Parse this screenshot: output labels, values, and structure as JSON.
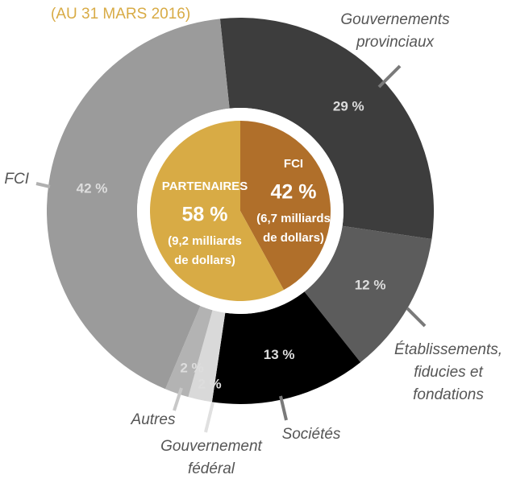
{
  "chart_data": {
    "type": "donut",
    "subtitle": "(AU 31 MARS 2016)",
    "categories": [
      "Gouvernements provinciaux",
      "Établissements, fiducies et fondations",
      "Sociétés",
      "Gouvernement fédéral",
      "Autres",
      "FCI"
    ],
    "values": [
      29,
      12,
      13,
      2,
      2,
      42
    ],
    "value_labels": [
      "29 %",
      "12 %",
      "13 %",
      "2 %",
      "2 %",
      "42 %"
    ],
    "colors": [
      "#3d3d3d",
      "#5c5c5c",
      "#000000",
      "#d9d9d9",
      "#b3b3b3",
      "#9b9b9b"
    ],
    "inner": {
      "categories": [
        "FCI",
        "PARTENAIRES"
      ],
      "values": [
        42,
        58
      ],
      "value_labels": [
        "42 %",
        "58 %"
      ],
      "amounts": [
        "(6,7 milliards de dollars)",
        "(9,2 milliards de dollars)"
      ],
      "colors": [
        "#b06f2a",
        "#d8ab45"
      ]
    }
  }
}
